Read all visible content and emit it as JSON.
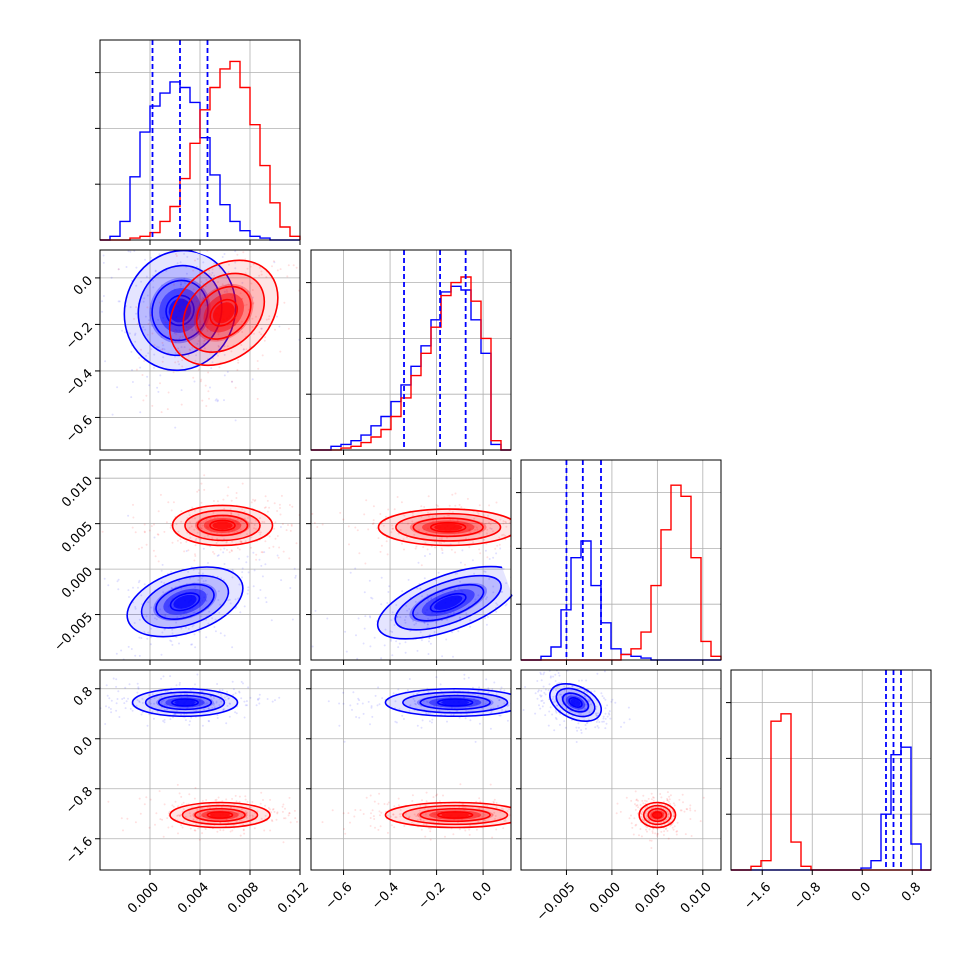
{
  "chart_data": {
    "type": "corner",
    "title": "",
    "series_colors": [
      "#0000ff",
      "#ff0000"
    ],
    "grid": true,
    "parameters": [
      {
        "range": [
          -0.004,
          0.012
        ],
        "ticks": [
          0.0,
          0.004,
          0.008,
          0.012
        ],
        "tick_labels": [
          "0.000",
          "0.004",
          "0.008",
          "0.012"
        ],
        "quantiles": [
          0.0002,
          0.0024,
          0.0046
        ]
      },
      {
        "range": [
          -0.74,
          0.12
        ],
        "ticks": [
          -0.6,
          -0.4,
          -0.2,
          0.0
        ],
        "tick_labels": [
          "−0.6",
          "−0.4",
          "−0.2",
          "0.0"
        ],
        "quantiles": [
          -0.34,
          -0.185,
          -0.075
        ]
      },
      {
        "range": [
          -0.01,
          0.012
        ],
        "ticks": [
          -0.005,
          0.0,
          0.005,
          0.01
        ],
        "tick_labels": [
          "−0.005",
          "0.000",
          "0.005",
          "0.010"
        ],
        "quantiles": [
          -0.005,
          -0.0032,
          -0.0012
        ]
      },
      {
        "range": [
          -2.1,
          1.1
        ],
        "ticks": [
          -1.6,
          -0.8,
          0.0,
          0.8
        ],
        "tick_labels": [
          "−1.6",
          "−0.8",
          "0.0",
          "0.8"
        ],
        "quantiles": [
          0.38,
          0.5,
          0.62
        ]
      }
    ],
    "histograms": [
      {
        "ymax": 1.0,
        "edges": [
          -0.004,
          -0.0032,
          -0.0024,
          -0.0016,
          -0.0008,
          0.0,
          0.0008,
          0.0016,
          0.0024,
          0.0032,
          0.004,
          0.0048,
          0.0056,
          0.0064,
          0.0072,
          0.008,
          0.0088,
          0.0096,
          0.0104,
          0.0112,
          0.012
        ],
        "series": [
          {
            "values": [
              0.0,
              0.02,
              0.1,
              0.34,
              0.58,
              0.72,
              0.79,
              0.85,
              0.82,
              0.74,
              0.55,
              0.35,
              0.19,
              0.1,
              0.05,
              0.02,
              0.01,
              0.0,
              0.0,
              0.0
            ]
          },
          {
            "values": [
              0.0,
              0.0,
              0.0,
              0.01,
              0.02,
              0.04,
              0.1,
              0.18,
              0.33,
              0.52,
              0.7,
              0.82,
              0.92,
              0.96,
              0.82,
              0.62,
              0.4,
              0.2,
              0.07,
              0.02
            ]
          }
        ]
      },
      {
        "ymax": 1.0,
        "edges": [
          -0.74,
          -0.697,
          -0.654,
          -0.611,
          -0.568,
          -0.525,
          -0.482,
          -0.439,
          -0.396,
          -0.353,
          -0.31,
          -0.267,
          -0.224,
          -0.181,
          -0.138,
          -0.095,
          -0.052,
          -0.009,
          0.034,
          0.077,
          0.12
        ],
        "series": [
          {
            "values": [
              0.0,
              0.0,
              0.02,
              0.03,
              0.05,
              0.08,
              0.13,
              0.18,
              0.26,
              0.35,
              0.45,
              0.56,
              0.7,
              0.85,
              0.88,
              0.86,
              0.7,
              0.52,
              0.03,
              0.0
            ]
          },
          {
            "values": [
              0.0,
              0.0,
              0.0,
              0.01,
              0.02,
              0.04,
              0.07,
              0.11,
              0.18,
              0.28,
              0.4,
              0.52,
              0.66,
              0.83,
              0.9,
              0.93,
              0.8,
              0.6,
              0.05,
              0.0
            ]
          }
        ]
      },
      {
        "ymax": 1.0,
        "edges": [
          -0.01,
          -0.0089,
          -0.0078,
          -0.0067,
          -0.0056,
          -0.0045,
          -0.0034,
          -0.0023,
          -0.0012,
          -0.0001,
          0.001,
          0.0021,
          0.0032,
          0.0043,
          0.0054,
          0.0065,
          0.0076,
          0.0087,
          0.0098,
          0.0109,
          0.012
        ],
        "series": [
          {
            "values": [
              0.0,
              0.0,
              0.02,
              0.07,
              0.27,
              0.55,
              0.64,
              0.4,
              0.2,
              0.06,
              0.03,
              0.02,
              0.01,
              0.0,
              0.0,
              0.0,
              0.0,
              0.0,
              0.0,
              0.0
            ]
          },
          {
            "values": [
              0.0,
              0.0,
              0.0,
              0.0,
              0.0,
              0.0,
              0.0,
              0.0,
              0.0,
              0.0,
              0.03,
              0.06,
              0.15,
              0.4,
              0.7,
              0.94,
              0.88,
              0.55,
              0.1,
              0.02
            ]
          }
        ]
      },
      {
        "ymax": 1.0,
        "edges": [
          -2.1,
          -1.94,
          -1.78,
          -1.62,
          -1.46,
          -1.3,
          -1.14,
          -0.98,
          -0.82,
          -0.66,
          -0.5,
          -0.34,
          -0.18,
          -0.02,
          0.14,
          0.3,
          0.46,
          0.62,
          0.78,
          0.94,
          1.1
        ],
        "series": [
          {
            "values": [
              0,
              0,
              0,
              0,
              0,
              0,
              0,
              0,
              0,
              0,
              0,
              0,
              0,
              0.01,
              0.05,
              0.3,
              0.62,
              0.66,
              0.14,
              0.0
            ]
          },
          {
            "values": [
              0,
              0,
              0.02,
              0.05,
              0.8,
              0.84,
              0.15,
              0.02,
              0,
              0,
              0,
              0,
              0,
              0,
              0,
              0,
              0,
              0,
              0,
              0
            ]
          }
        ]
      }
    ],
    "pairs": [
      {
        "row": 1,
        "col": 0,
        "series": [
          {
            "center": [
              0.0024,
              -0.14
            ],
            "sd": [
              0.0022,
              0.13
            ],
            "angle": -20
          },
          {
            "center": [
              0.0059,
              -0.15
            ],
            "sd": [
              0.0018,
              0.13
            ],
            "angle": -48
          }
        ]
      },
      {
        "row": 2,
        "col": 0,
        "series": [
          {
            "center": [
              0.0028,
              -0.0036
            ],
            "sd": [
              0.0024,
              0.0017
            ],
            "angle": 18
          },
          {
            "center": [
              0.0058,
              0.0048
            ],
            "sd": [
              0.002,
              0.0011
            ],
            "angle": 0
          }
        ]
      },
      {
        "row": 2,
        "col": 1,
        "series": [
          {
            "center": [
              -0.15,
              -0.0037
            ],
            "sd": [
              0.16,
              0.0015
            ],
            "angle": 20
          },
          {
            "center": [
              -0.15,
              0.0046
            ],
            "sd": [
              0.15,
              0.001
            ],
            "angle": 0
          }
        ]
      },
      {
        "row": 3,
        "col": 0,
        "series": [
          {
            "center": [
              0.0028,
              0.58
            ],
            "sd": [
              0.0021,
              0.11
            ],
            "angle": 0
          },
          {
            "center": [
              0.0056,
              -1.22
            ],
            "sd": [
              0.002,
              0.1
            ],
            "angle": 0
          }
        ]
      },
      {
        "row": 3,
        "col": 1,
        "series": [
          {
            "center": [
              -0.12,
              0.58
            ],
            "sd": [
              0.15,
              0.11
            ],
            "angle": 0
          },
          {
            "center": [
              -0.12,
              -1.22
            ],
            "sd": [
              0.15,
              0.1
            ],
            "angle": 0
          }
        ]
      },
      {
        "row": 3,
        "col": 2,
        "series": [
          {
            "center": [
              -0.004,
              0.58
            ],
            "sd": [
              0.0015,
              0.13
            ],
            "angle": -25
          },
          {
            "center": [
              0.005,
              -1.22
            ],
            "sd": [
              0.001,
              0.1
            ],
            "angle": 0
          }
        ]
      }
    ]
  }
}
